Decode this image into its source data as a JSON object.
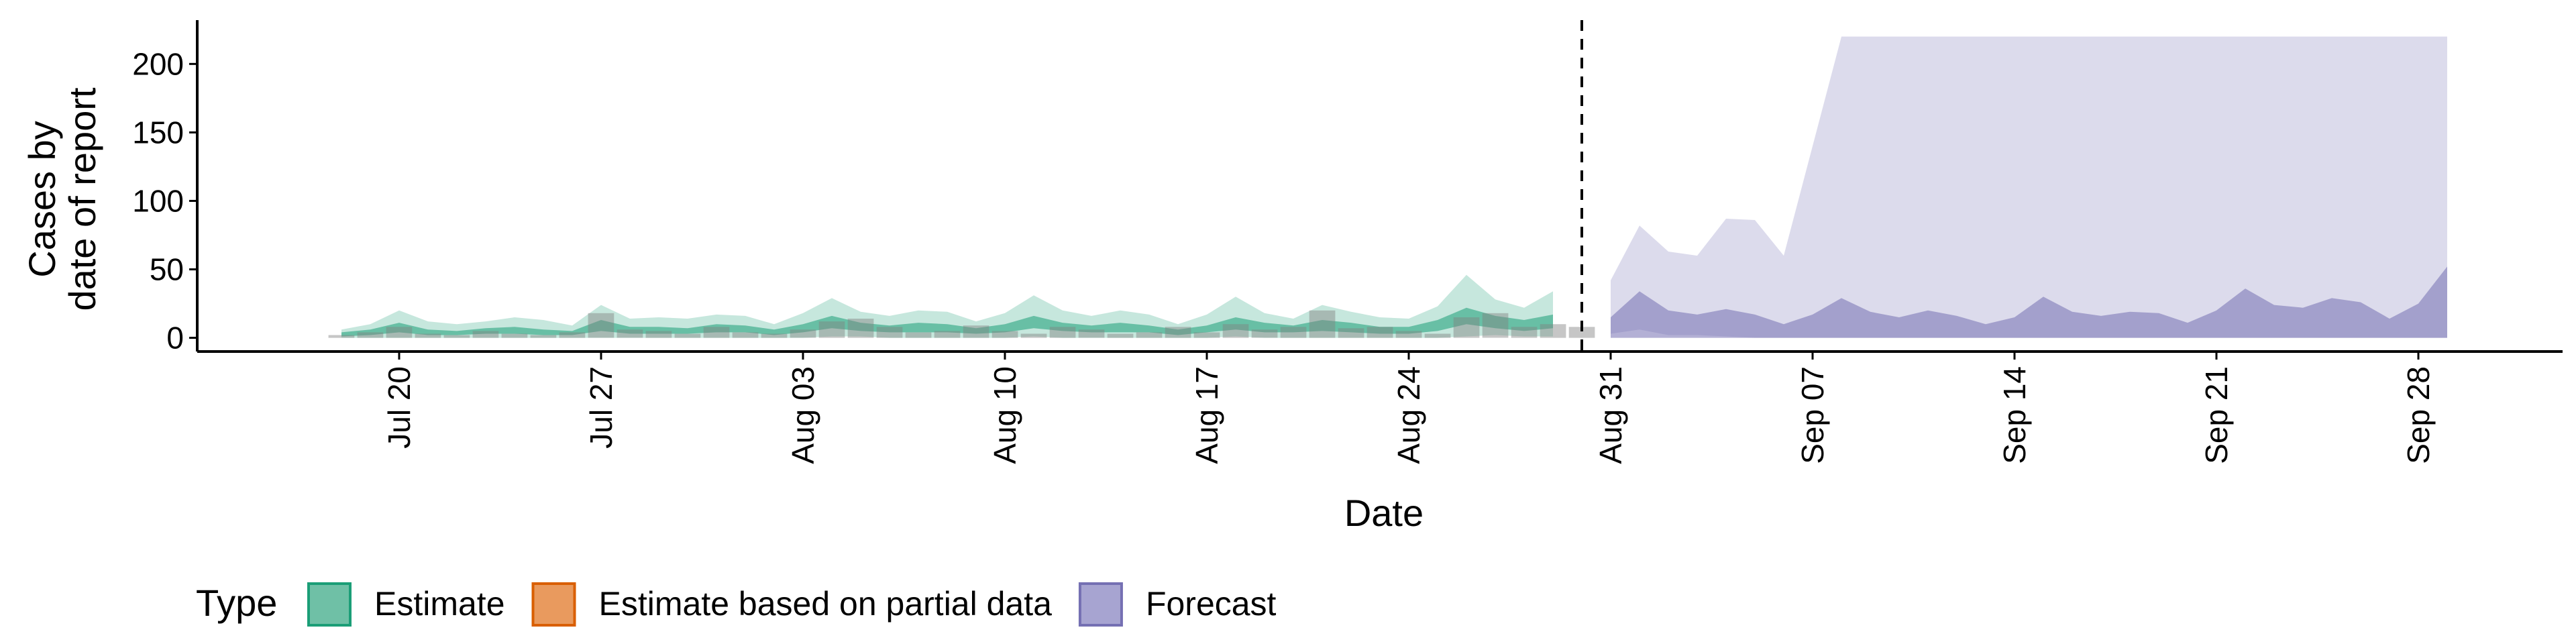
{
  "chart_data": {
    "type": "area",
    "xlabel": "Date",
    "ylabel_lines": [
      "Cases by",
      "date of report"
    ],
    "yticks": [
      0,
      50,
      100,
      150,
      200
    ],
    "ylim": [
      -10,
      232
    ],
    "xlim": [
      "2020-07-13",
      "2020-10-03"
    ],
    "xticks": [
      {
        "date": "2020-07-20",
        "label": "Jul 20"
      },
      {
        "date": "2020-07-27",
        "label": "Jul 27"
      },
      {
        "date": "2020-08-03",
        "label": "Aug 03"
      },
      {
        "date": "2020-08-10",
        "label": "Aug 10"
      },
      {
        "date": "2020-08-17",
        "label": "Aug 17"
      },
      {
        "date": "2020-08-24",
        "label": "Aug 24"
      },
      {
        "date": "2020-08-31",
        "label": "Aug 31"
      },
      {
        "date": "2020-09-07",
        "label": "Sep 07"
      },
      {
        "date": "2020-09-14",
        "label": "Sep 14"
      },
      {
        "date": "2020-09-21",
        "label": "Sep 21"
      },
      {
        "date": "2020-09-28",
        "label": "Sep 28"
      }
    ],
    "forecast_start_date": "2020-08-30",
    "colors": {
      "estimate": "#1b9e77",
      "estimate_partial": "#d95f02",
      "forecast": "#7570b3",
      "reported_bars": "#808080",
      "vline": "#000000"
    },
    "legend": {
      "title": "Type",
      "position": "bottom-left",
      "items": [
        {
          "key": "estimate",
          "label": "Estimate",
          "fill": "#6fc0a6",
          "stroke": "#1b9e77"
        },
        {
          "key": "estimate_partial",
          "label": "Estimate based on partial data",
          "fill": "#e99a5e",
          "stroke": "#d95f02"
        },
        {
          "key": "forecast",
          "label": "Forecast",
          "fill": "#a7a4d1",
          "stroke": "#7570b3"
        }
      ]
    },
    "reported_cases": {
      "dates": [
        "2020-07-18",
        "2020-07-19",
        "2020-07-20",
        "2020-07-21",
        "2020-07-22",
        "2020-07-23",
        "2020-07-24",
        "2020-07-25",
        "2020-07-26",
        "2020-07-27",
        "2020-07-28",
        "2020-07-29",
        "2020-07-30",
        "2020-07-31",
        "2020-08-01",
        "2020-08-02",
        "2020-08-03",
        "2020-08-04",
        "2020-08-05",
        "2020-08-06",
        "2020-08-07",
        "2020-08-08",
        "2020-08-09",
        "2020-08-10",
        "2020-08-11",
        "2020-08-12",
        "2020-08-13",
        "2020-08-14",
        "2020-08-15",
        "2020-08-16",
        "2020-08-17",
        "2020-08-18",
        "2020-08-19",
        "2020-08-20",
        "2020-08-21",
        "2020-08-22",
        "2020-08-23",
        "2020-08-24",
        "2020-08-25",
        "2020-08-26",
        "2020-08-27",
        "2020-08-28",
        "2020-08-29",
        "2020-08-30"
      ],
      "values": [
        2,
        4,
        8,
        3,
        2,
        5,
        3,
        2,
        4,
        18,
        6,
        5,
        3,
        8,
        4,
        3,
        6,
        12,
        14,
        8,
        4,
        5,
        9,
        5,
        3,
        8,
        6,
        3,
        4,
        8,
        4,
        10,
        6,
        8,
        20,
        7,
        8,
        5,
        3,
        15,
        18,
        8,
        10,
        8
      ]
    },
    "estimate": {
      "dates": [
        "2020-07-18",
        "2020-07-19",
        "2020-07-20",
        "2020-07-21",
        "2020-07-22",
        "2020-07-23",
        "2020-07-24",
        "2020-07-25",
        "2020-07-26",
        "2020-07-27",
        "2020-07-28",
        "2020-07-29",
        "2020-07-30",
        "2020-07-31",
        "2020-08-01",
        "2020-08-02",
        "2020-08-03",
        "2020-08-04",
        "2020-08-05",
        "2020-08-06",
        "2020-08-07",
        "2020-08-08",
        "2020-08-09",
        "2020-08-10",
        "2020-08-11",
        "2020-08-12",
        "2020-08-13",
        "2020-08-14",
        "2020-08-15",
        "2020-08-16",
        "2020-08-17",
        "2020-08-18",
        "2020-08-19",
        "2020-08-20",
        "2020-08-21",
        "2020-08-22",
        "2020-08-23",
        "2020-08-24",
        "2020-08-25",
        "2020-08-26",
        "2020-08-27",
        "2020-08-28",
        "2020-08-29"
      ],
      "upper90": [
        6,
        10,
        20,
        12,
        10,
        12,
        15,
        13,
        9,
        24,
        14,
        15,
        14,
        17,
        16,
        10,
        18,
        29,
        19,
        16,
        20,
        19,
        12,
        18,
        31,
        20,
        16,
        20,
        17,
        10,
        17,
        30,
        18,
        14,
        24,
        19,
        15,
        14,
        23,
        46,
        28,
        22,
        34
      ],
      "lower90": [
        0,
        0,
        0,
        0,
        0,
        0,
        0,
        0,
        0,
        0,
        0,
        0,
        0,
        0,
        0,
        0,
        0,
        1,
        1,
        0,
        0,
        0,
        0,
        0,
        1,
        0,
        0,
        0,
        0,
        0,
        0,
        1,
        0,
        0,
        0,
        0,
        0,
        0,
        0,
        1,
        2,
        1,
        1
      ],
      "upper50": [
        4,
        6,
        11,
        6,
        5,
        7,
        8,
        6,
        5,
        13,
        8,
        8,
        7,
        10,
        9,
        6,
        10,
        16,
        11,
        9,
        11,
        10,
        7,
        10,
        16,
        11,
        9,
        11,
        9,
        6,
        9,
        15,
        11,
        9,
        13,
        11,
        8,
        8,
        13,
        22,
        16,
        13,
        17
      ],
      "lower50": [
        1,
        2,
        4,
        2,
        2,
        3,
        3,
        2,
        2,
        5,
        3,
        3,
        3,
        4,
        4,
        2,
        4,
        7,
        5,
        4,
        4,
        4,
        3,
        4,
        7,
        5,
        4,
        4,
        4,
        2,
        4,
        6,
        4,
        4,
        5,
        4,
        3,
        3,
        5,
        10,
        7,
        5,
        7
      ]
    },
    "forecast": {
      "dates": [
        "2020-08-31",
        "2020-09-01",
        "2020-09-02",
        "2020-09-03",
        "2020-09-04",
        "2020-09-05",
        "2020-09-06",
        "2020-09-07",
        "2020-09-08",
        "2020-09-09",
        "2020-09-10",
        "2020-09-11",
        "2020-09-12",
        "2020-09-13",
        "2020-09-14",
        "2020-09-15",
        "2020-09-16",
        "2020-09-17",
        "2020-09-18",
        "2020-09-19",
        "2020-09-20",
        "2020-09-21",
        "2020-09-22",
        "2020-09-23",
        "2020-09-24",
        "2020-09-25",
        "2020-09-26",
        "2020-09-27",
        "2020-09-28",
        "2020-09-29"
      ],
      "upper90": [
        42,
        82,
        63,
        60,
        87,
        86,
        60,
        140,
        220,
        220,
        220,
        220,
        220,
        220,
        220,
        220,
        220,
        220,
        220,
        220,
        220,
        220,
        220,
        220,
        220,
        220,
        220,
        220,
        220,
        220
      ],
      "lower90": [
        3,
        6,
        2,
        2,
        1,
        0,
        0,
        0,
        0,
        0,
        0,
        0,
        0,
        0,
        0,
        0,
        0,
        0,
        0,
        0,
        0,
        0,
        0,
        0,
        0,
        0,
        0,
        0,
        0,
        0
      ],
      "upper50": [
        15,
        34,
        20,
        17,
        21,
        17,
        10,
        17,
        29,
        19,
        15,
        20,
        16,
        10,
        15,
        30,
        19,
        16,
        19,
        18,
        11,
        20,
        36,
        24,
        22,
        29,
        26,
        14,
        25,
        52
      ],
      "lower50": [
        0,
        0,
        0,
        0,
        0,
        0,
        0,
        0,
        0,
        0,
        0,
        0,
        0,
        0,
        0,
        0,
        0,
        0,
        0,
        0,
        0,
        0,
        0,
        0,
        0,
        0,
        0,
        0,
        0,
        0
      ]
    }
  }
}
